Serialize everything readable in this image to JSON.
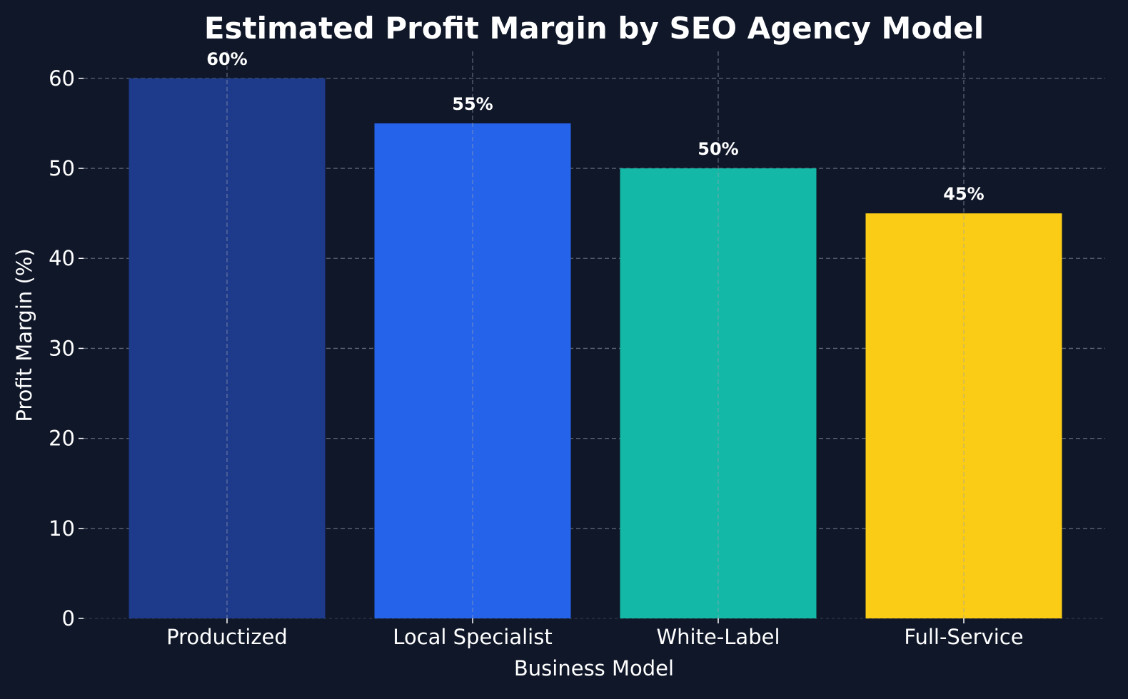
{
  "chart_data": {
    "type": "bar",
    "title": "Estimated Profit Margin by SEO Agency Model",
    "xlabel": "Business Model",
    "ylabel": "Profit Margin (%)",
    "categories": [
      "Productized",
      "Local Specialist",
      "White-Label",
      "Full-Service"
    ],
    "values": [
      60,
      55,
      50,
      45
    ],
    "data_labels": [
      "60%",
      "55%",
      "50%",
      "45%"
    ],
    "colors": [
      "#1e3a8a",
      "#2563eb",
      "#14b8a6",
      "#facc15"
    ],
    "ylim": [
      0,
      63
    ],
    "yticks": [
      0,
      10,
      20,
      30,
      40,
      50,
      60
    ],
    "grid": true,
    "background": "#0f1729"
  }
}
